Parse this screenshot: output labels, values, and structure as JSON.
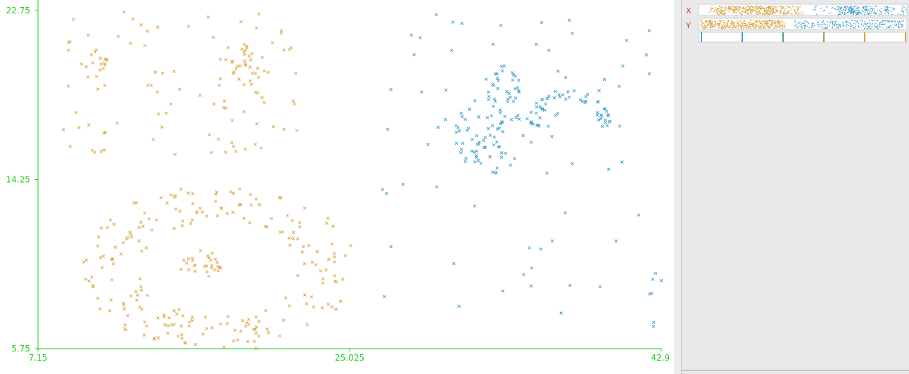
{
  "chart_data": {
    "type": "scatter",
    "title": "",
    "xlabel": "",
    "ylabel": "",
    "xlim": [
      7.15,
      42.9
    ],
    "ylim": [
      5.75,
      22.75
    ],
    "x_ticks": [
      "7.15",
      "25.025",
      "42.9"
    ],
    "y_ticks": [
      "22.75",
      "14.25",
      "5.75"
    ],
    "marker": "x",
    "grid": false,
    "legend": "none",
    "series": [
      {
        "color": "#d9a441",
        "clusters": [
          {
            "kind": "ring",
            "cx": 17.5,
            "cy": 9.8,
            "rx": 6.2,
            "ry": 3.3,
            "n": 220,
            "thickness": 0.55
          },
          {
            "kind": "blob",
            "cx": 16.5,
            "cy": 10.0,
            "rx": 1.3,
            "ry": 0.7,
            "n": 28
          },
          {
            "kind": "scatter",
            "x0": 8.4,
            "x1": 22.0,
            "y0": 15.5,
            "y1": 22.7,
            "n": 95
          },
          {
            "kind": "blob",
            "cx": 10.6,
            "cy": 20.2,
            "rx": 0.6,
            "ry": 0.6,
            "n": 12
          },
          {
            "kind": "blob",
            "cx": 19.2,
            "cy": 20.0,
            "rx": 1.3,
            "ry": 1.0,
            "n": 28
          }
        ]
      },
      {
        "color": "#3d9ec9",
        "clusters": [
          {
            "kind": "blob",
            "cx": 33.0,
            "cy": 16.5,
            "rx": 2.1,
            "ry": 1.9,
            "n": 70
          },
          {
            "kind": "arc",
            "cx": 37.6,
            "cy": 16.9,
            "r": 2.0,
            "n": 55
          },
          {
            "kind": "blob",
            "cx": 33.8,
            "cy": 19.0,
            "rx": 1.0,
            "ry": 1.1,
            "n": 30
          },
          {
            "kind": "scatter",
            "x0": 26.8,
            "x1": 42.9,
            "y0": 6.8,
            "y1": 22.7,
            "n": 75
          }
        ]
      }
    ]
  },
  "side_panel": {
    "x_label": "X",
    "y_label": "Y",
    "label_color": "#e03030",
    "axis_color": "#22cc22"
  }
}
